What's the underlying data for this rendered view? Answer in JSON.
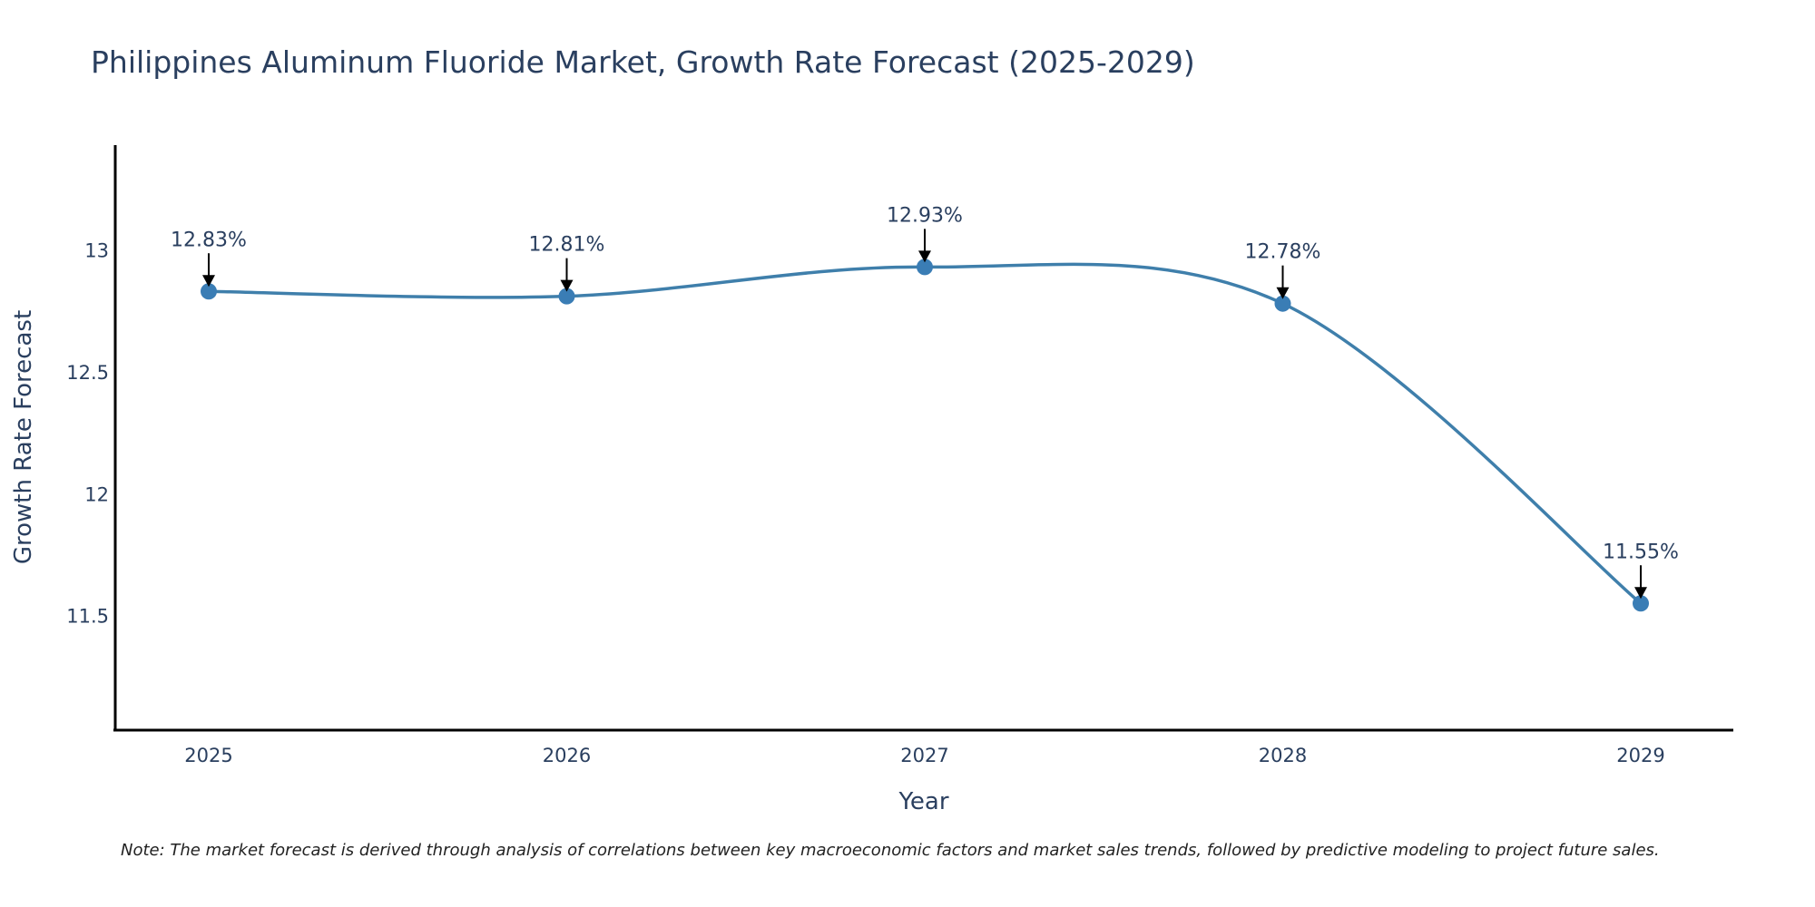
{
  "chart_data": {
    "type": "line",
    "title": "Philippines Aluminum Fluoride Market, Growth Rate Forecast (2025-2029)",
    "xlabel": "Year",
    "ylabel": "Growth Rate Forecast",
    "categories": [
      "2025",
      "2026",
      "2027",
      "2028",
      "2029"
    ],
    "series": [
      {
        "name": "Growth Rate Forecast",
        "values": [
          12.83,
          12.81,
          12.93,
          12.78,
          11.55
        ]
      }
    ],
    "data_labels": [
      "12.83%",
      "12.81%",
      "12.93%",
      "12.78%",
      "11.55%"
    ],
    "ylim": [
      11.03,
      13.43
    ],
    "yticks": [
      11.5,
      12,
      12.5,
      13
    ],
    "ytick_labels": [
      "11.5",
      "12",
      "12.5",
      "13"
    ],
    "grid": false,
    "legend": "none",
    "line_color": "#3f7fab",
    "marker_color": "#3a7db5",
    "note": "Note: The market forecast is derived through analysis of correlations between key macroeconomic factors and market sales trends, followed by predictive modeling to project future sales."
  }
}
